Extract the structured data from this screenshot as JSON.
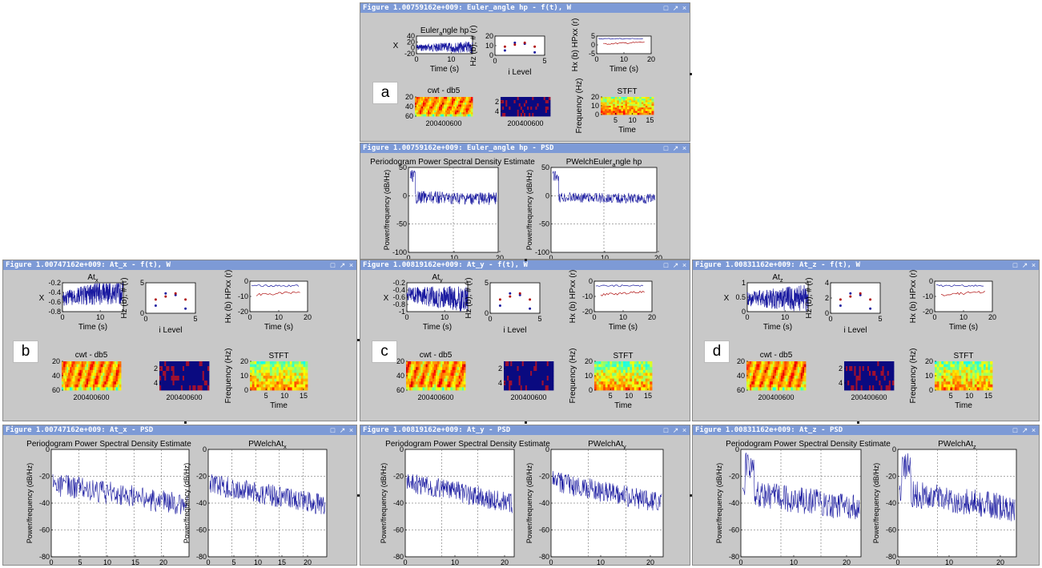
{
  "windows": [
    {
      "id": "a-ft",
      "title": "Figure 1.00759162e+009: Euler_angle hp - f(t), W",
      "kind": "ft",
      "label": "a",
      "ts": {
        "title": "Euler",
        "title_sub": "a",
        "title_rest": "ngle hp",
        "ylabel": "X",
        "xlabel": "Time (s)",
        "yticks": [
          "40",
          "20",
          "0",
          "-20"
        ],
        "xticks": [
          "0",
          "10"
        ]
      },
      "levels": {
        "ylabel": "Hz (b), # (r)",
        "xlabel": "i Level",
        "yticks": [
          "20",
          "10",
          "0"
        ],
        "xticks": [
          "0",
          "5"
        ]
      },
      "hx": {
        "ylabel": "Hx (b) HPxx (r)",
        "xlabel": "Time (s)",
        "yticks": [
          "5",
          "0",
          "-5"
        ],
        "xticks": [
          "0",
          "10",
          "20"
        ]
      },
      "cwt": {
        "title": "cwt - db5",
        "yticks": [
          "20",
          "40",
          "60"
        ],
        "xticks": "200400600"
      },
      "dwt": {
        "yticks": [
          "2",
          "4"
        ],
        "xticks": "200400600"
      },
      "stft": {
        "title": "STFT",
        "ylabel": "Frequency (Hz)",
        "xlabel": "Time",
        "yticks": [
          "20",
          "10",
          "0"
        ],
        "xticks": [
          "5",
          "10",
          "15"
        ]
      }
    },
    {
      "id": "a-psd",
      "title": "Figure 1.00759162e+009: Euler_angle hp - PSD",
      "kind": "psd",
      "p1": {
        "title": "Periodogram Power Spectral Density Estimate",
        "ylabel": "Power/frequency (dB/Hz)",
        "yticks": [
          "50",
          "0",
          "-50",
          "-100"
        ],
        "xticks": [
          "0",
          "10",
          "20"
        ]
      },
      "p2": {
        "title": "PWelchEuler",
        "title_sub": "a",
        "title_rest": "ngle hp",
        "ylabel": "Power/frequency (dB/Hz)",
        "yticks": [
          "50",
          "0",
          "-50",
          "-100"
        ],
        "xticks": [
          "0",
          "10",
          "20"
        ]
      }
    },
    {
      "id": "b-ft",
      "title": "Figure 1.00747162e+009: At_x - f(t), W",
      "kind": "ft",
      "label": "b",
      "ts": {
        "title": "At",
        "title_sub": "x",
        "title_rest": "",
        "ylabel": "X",
        "xlabel": "Time (s)",
        "yticks": [
          "-0.2",
          "-0.4",
          "-0.6",
          "-0.8"
        ],
        "xticks": [
          "0",
          "10"
        ]
      },
      "levels": {
        "ylabel": "Hz (b), # (r)",
        "xlabel": "i Level",
        "yticks": [
          "5",
          "0"
        ],
        "xticks": [
          "0",
          "5"
        ]
      },
      "hx": {
        "ylabel": "Hx (b) HPxx (r)",
        "xlabel": "Time (s)",
        "yticks": [
          "0",
          "-10",
          "-20"
        ],
        "xticks": [
          "0",
          "10",
          "20"
        ]
      },
      "cwt": {
        "title": "cwt - db5",
        "yticks": [
          "20",
          "40",
          "60"
        ],
        "xticks": "200400600"
      },
      "dwt": {
        "yticks": [
          "2",
          "4"
        ],
        "xticks": "200400600"
      },
      "stft": {
        "title": "STFT",
        "ylabel": "Frequency (Hz)",
        "xlabel": "Time",
        "yticks": [
          "20",
          "10",
          "0"
        ],
        "xticks": [
          "5",
          "10",
          "15"
        ]
      }
    },
    {
      "id": "c-ft",
      "title": "Figure 1.00819162e+009: At_y - f(t), W",
      "kind": "ft",
      "label": "c",
      "ts": {
        "title": "At",
        "title_sub": "y",
        "title_rest": "",
        "ylabel": "X",
        "xlabel": "Time (s)",
        "yticks": [
          "-0.2",
          "-0.4",
          "-0.6",
          "-0.8",
          "-1"
        ],
        "xticks": [
          "0",
          "10"
        ]
      },
      "levels": {
        "ylabel": "Hz (b), # (r)",
        "xlabel": "i Level",
        "yticks": [
          "5",
          "0"
        ],
        "xticks": [
          "0",
          "5"
        ]
      },
      "hx": {
        "ylabel": "Hx (b) HPxx (r)",
        "xlabel": "Time (s)",
        "yticks": [
          "0",
          "-10",
          "-20"
        ],
        "xticks": [
          "0",
          "10",
          "20"
        ]
      },
      "cwt": {
        "title": "cwt - db5",
        "yticks": [
          "20",
          "40",
          "60"
        ],
        "xticks": "200400600"
      },
      "dwt": {
        "yticks": [
          "2",
          "4"
        ],
        "xticks": "200400600"
      },
      "stft": {
        "title": "STFT",
        "ylabel": "Frequency (Hz)",
        "xlabel": "Time",
        "yticks": [
          "20",
          "10",
          "0"
        ],
        "xticks": [
          "5",
          "10",
          "15"
        ]
      }
    },
    {
      "id": "d-ft",
      "title": "Figure 1.00831162e+009: At_z - f(t), W",
      "kind": "ft",
      "label": "d",
      "ts": {
        "title": "At",
        "title_sub": "z",
        "title_rest": "",
        "ylabel": "X",
        "xlabel": "Time (s)",
        "yticks": [
          "1",
          "0.5",
          "0"
        ],
        "xticks": [
          "0",
          "10"
        ]
      },
      "levels": {
        "ylabel": "Hz (b), # (r)",
        "xlabel": "i Level",
        "yticks": [
          "4",
          "2",
          "0"
        ],
        "xticks": [
          "0",
          "5"
        ]
      },
      "hx": {
        "ylabel": "Hx (b) HPxx (r)",
        "xlabel": "Time (s)",
        "yticks": [
          "0",
          "-10",
          "-20"
        ],
        "xticks": [
          "0",
          "10",
          "20"
        ]
      },
      "cwt": {
        "title": "cwt - db5",
        "yticks": [
          "20",
          "40",
          "60"
        ],
        "xticks": "200400600"
      },
      "dwt": {
        "yticks": [
          "2",
          "4"
        ],
        "xticks": "200400600"
      },
      "stft": {
        "title": "STFT",
        "ylabel": "Frequency (Hz)",
        "xlabel": "Time",
        "yticks": [
          "20",
          "10",
          "0"
        ],
        "xticks": [
          "5",
          "10",
          "15"
        ]
      }
    },
    {
      "id": "b-psd",
      "title": "Figure 1.00747162e+009: At_x - PSD",
      "kind": "psd",
      "p1": {
        "title": "Periodogram Power Spectral Density Estimate",
        "ylabel": "Power/frequency (dB/Hz)",
        "yticks": [
          "0",
          "-20",
          "-40",
          "-60",
          "-80"
        ],
        "xticks": [
          "0",
          "5",
          "10",
          "15",
          "20"
        ]
      },
      "p2": {
        "title": "PWelchAt",
        "title_sub": "x",
        "title_rest": "",
        "ylabel": "Power/frequency (dB/Hz)",
        "yticks": [
          "0",
          "-20",
          "-40",
          "-60",
          "-80"
        ],
        "xticks": [
          "0",
          "5",
          "10",
          "15",
          "20"
        ]
      }
    },
    {
      "id": "c-psd",
      "title": "Figure 1.00819162e+009: At_y - PSD",
      "kind": "psd",
      "p1": {
        "title": "Periodogram Power Spectral Density Estimate",
        "ylabel": "Power/frequency (dB/Hz)",
        "yticks": [
          "0",
          "-20",
          "-40",
          "-60",
          "-80"
        ],
        "xticks": [
          "0",
          "10",
          "20"
        ]
      },
      "p2": {
        "title": "PWelchAt",
        "title_sub": "y",
        "title_rest": "",
        "ylabel": "Power/frequency (dB/Hz)",
        "yticks": [
          "0",
          "-20",
          "-40",
          "-60",
          "-80"
        ],
        "xticks": [
          "0",
          "10",
          "20"
        ]
      }
    },
    {
      "id": "d-psd",
      "title": "Figure 1.00831162e+009: At_z - PSD",
      "kind": "psd",
      "p1": {
        "title": "Periodogram Power Spectral Density Estimate",
        "ylabel": "Power/frequency (dB/Hz)",
        "yticks": [
          "0",
          "-20",
          "-40",
          "-60",
          "-80"
        ],
        "xticks": [
          "0",
          "10",
          "20"
        ]
      },
      "p2": {
        "title": "PWelchAt",
        "title_sub": "z",
        "title_rest": "",
        "ylabel": "Power/frequency (dB/Hz)",
        "yticks": [
          "0",
          "-20",
          "-40",
          "-60",
          "-80"
        ],
        "xticks": [
          "0",
          "10",
          "20"
        ]
      }
    }
  ],
  "titlebar_buttons": [
    "□",
    "↗",
    "×"
  ],
  "colors": {
    "titlebar": "#7d9ad6",
    "window_bg": "#c8c8c8",
    "series_blue": "#1a1aa0",
    "series_red": "#b01010",
    "cwt_hot": "#e01000",
    "cwt_warm": "#ffb000",
    "dwt_bg": "#0a0a80"
  }
}
